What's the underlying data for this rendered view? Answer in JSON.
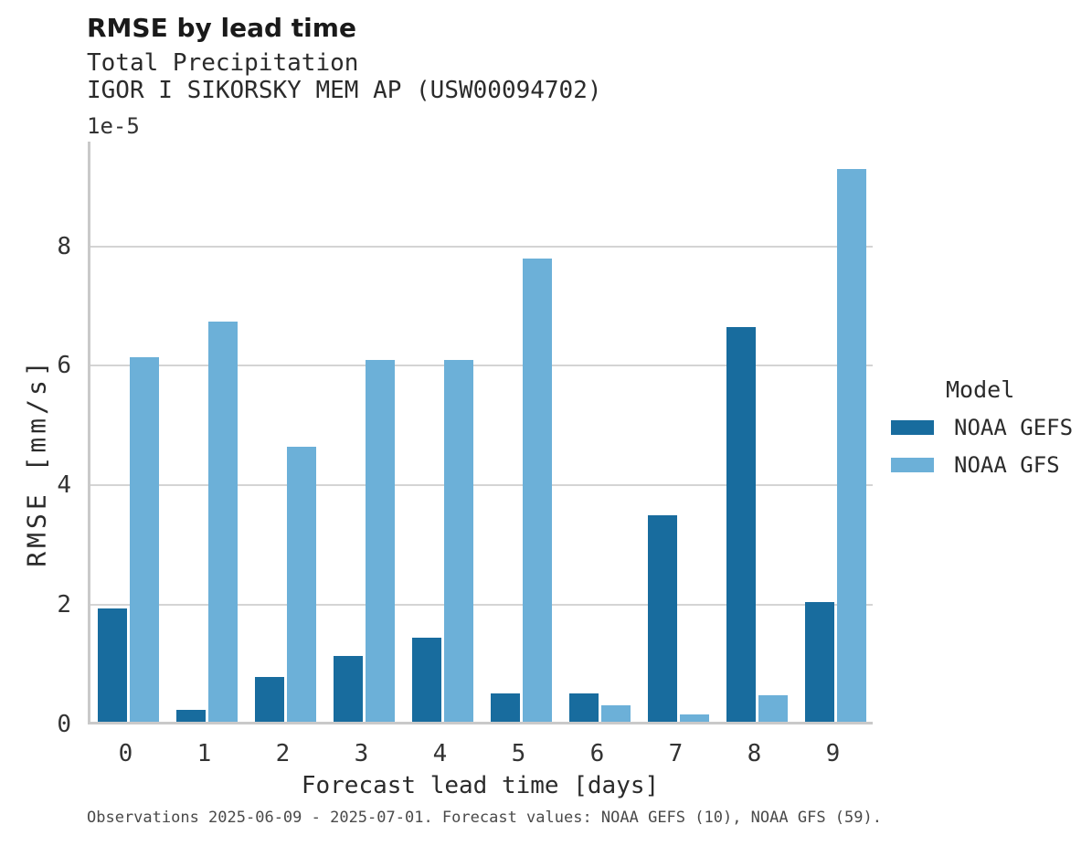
{
  "header": {
    "title": "RMSE by lead time",
    "subtitle1": "Total Precipitation",
    "subtitle2": "IGOR I SIKORSKY MEM AP (USW00094702)"
  },
  "legend": {
    "title": "Model",
    "entries": [
      {
        "label": "NOAA GEFS",
        "color": "#186C9E"
      },
      {
        "label": "NOAA GFS",
        "color": "#6CB0D8"
      }
    ]
  },
  "footer": {
    "note": "Observations 2025-06-09 - 2025-07-01. Forecast values: NOAA GEFS (10), NOAA GFS (59)."
  },
  "chart_data": {
    "type": "bar",
    "title": "RMSE by lead time",
    "subtitle": [
      "Total Precipitation",
      "IGOR I SIKORSKY MEM AP (USW00094702)"
    ],
    "xlabel": "Forecast lead time [days]",
    "ylabel": "RMSE [mm/s]",
    "y_offset_label": "1e-5",
    "value_unit": "1e-5 mm/s",
    "categories": [
      "0",
      "1",
      "2",
      "3",
      "4",
      "5",
      "6",
      "7",
      "8",
      "9"
    ],
    "series": [
      {
        "name": "NOAA GEFS",
        "color": "#186C9E",
        "values": [
          1.9,
          0.2,
          0.75,
          1.1,
          1.4,
          0.48,
          0.48,
          3.45,
          6.6,
          2.0
        ]
      },
      {
        "name": "NOAA GFS",
        "color": "#6CB0D8",
        "values": [
          6.1,
          6.7,
          4.6,
          6.05,
          6.05,
          7.75,
          0.28,
          0.12,
          0.45,
          9.25
        ]
      }
    ],
    "yticks": [
      0,
      2,
      4,
      6,
      8
    ],
    "ylim": [
      0,
      9.75
    ],
    "grid": true,
    "legend_title": "Model",
    "legend_position": "right"
  }
}
